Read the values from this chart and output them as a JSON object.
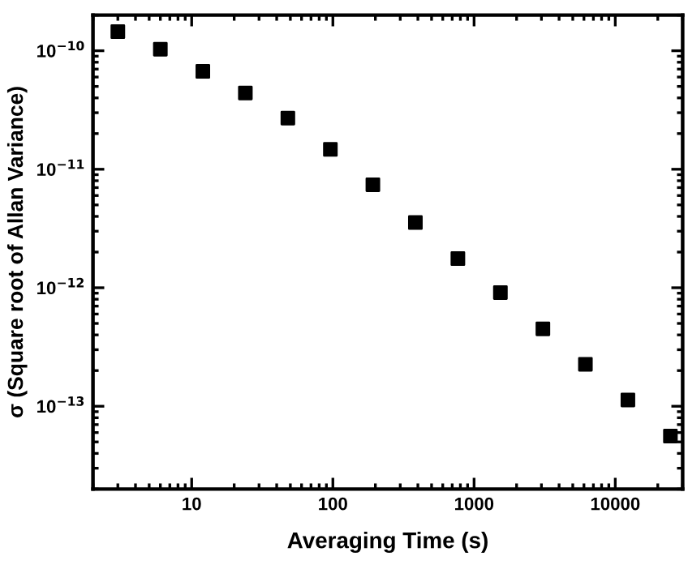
{
  "chart_data": {
    "type": "scatter",
    "xlabel": "Averaging Time (s)",
    "ylabel": "σ (Square root of Allan Variance)",
    "x": [
      3,
      6,
      12,
      24,
      48,
      96,
      192,
      384,
      768,
      1536,
      3072,
      6144,
      12288,
      24576
    ],
    "series": [
      {
        "color": "#000000",
        "values": [
          1.45e-10,
          1.03e-10,
          6.7e-11,
          4.4e-11,
          2.7e-11,
          1.47e-11,
          7.4e-12,
          3.55e-12,
          1.76e-12,
          9.1e-13,
          4.5e-13,
          2.26e-13,
          1.13e-13,
          5.6e-14
        ]
      }
    ],
    "log": "xy",
    "marker": "square",
    "grid": false,
    "xlim": [
      2,
      30000
    ],
    "xticks": [
      10,
      100,
      1000,
      10000
    ],
    "ylim": [
      2e-14,
      2e-10
    ],
    "yticks": [
      {
        "value": 1e-13,
        "label": "10$^{−13}$"
      },
      {
        "value": 1e-12,
        "label": "10$^{−12}$"
      },
      {
        "value": 1e-11,
        "label": "10$^{−11}$"
      },
      {
        "value": 1e-10,
        "label": "10$^{−10}$"
      }
    ]
  }
}
